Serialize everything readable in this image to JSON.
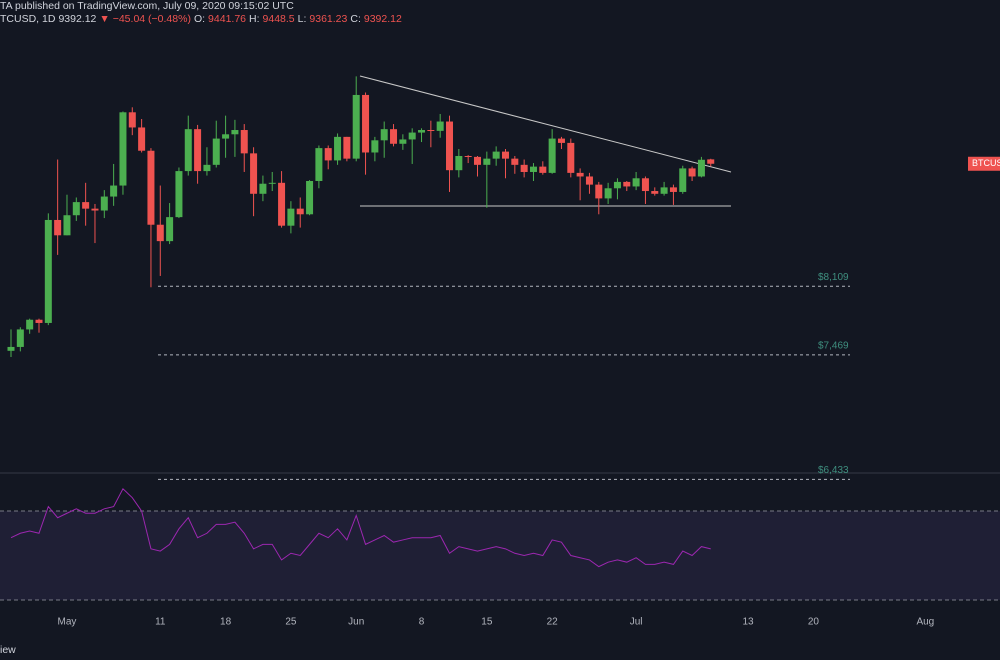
{
  "header": {
    "publisher": "TA published on TradingView.com, July 09, 2020 09:15:02 UTC",
    "symbol": "TCUSD, 1D",
    "last": 9392.12,
    "change": "▼ −45.04 (−0.48%)",
    "ohlc": [
      {
        "label": "O:",
        "value": 9441.76
      },
      {
        "label": "H:",
        "value": 9448.5
      },
      {
        "label": "L:",
        "value": 9361.23
      },
      {
        "label": "C:",
        "value": 9392.12
      }
    ]
  },
  "footer": "iew",
  "chart_data": [
    {
      "type": "candlestick",
      "log": true,
      "ylim": [
        6490,
        11430
      ],
      "up_color": "#4caf50",
      "down_color": "#ef5350",
      "price_tag": "BTCUS",
      "categories": [
        null,
        null,
        null,
        null,
        null,
        null,
        "May",
        null,
        null,
        null,
        null,
        null,
        null,
        null,
        null,
        null,
        "11",
        null,
        null,
        null,
        null,
        null,
        null,
        "18",
        null,
        null,
        null,
        null,
        null,
        null,
        "25",
        null,
        null,
        null,
        null,
        null,
        null,
        "Jun",
        null,
        null,
        null,
        null,
        null,
        null,
        "8",
        null,
        null,
        null,
        null,
        null,
        null,
        "15",
        null,
        null,
        null,
        null,
        null,
        null,
        "22",
        null,
        null,
        null,
        null,
        null,
        null,
        null,
        null,
        "Jul",
        null,
        null,
        null,
        null,
        null,
        null,
        null,
        null,
        null,
        null,
        null,
        "13",
        null,
        null,
        null,
        null,
        null,
        null,
        "20",
        null,
        null,
        null,
        null,
        null,
        null,
        null,
        null,
        null,
        null,
        null,
        "Aug"
      ],
      "open": [
        7505,
        7540,
        7700,
        7790,
        7760,
        8780,
        8620,
        8830,
        8970,
        8900,
        8880,
        9030,
        9150,
        9990,
        9810,
        9540,
        8730,
        8560,
        8810,
        9310,
        9790,
        9310,
        9380,
        9680,
        9730,
        9780,
        9510,
        9060,
        9170,
        9180,
        8720,
        8900,
        8840,
        9200,
        9570,
        9430,
        9700,
        9450,
        10200,
        9520,
        9660,
        9790,
        9620,
        9670,
        9750,
        9780,
        9770,
        9880,
        9320,
        9480,
        9470,
        9380,
        9450,
        9530,
        9450,
        9380,
        9300,
        9360,
        9290,
        9680,
        9630,
        9290,
        9250,
        9160,
        9010,
        9120,
        9190,
        9140,
        9230,
        9090,
        9060,
        9130,
        9080,
        9340,
        9250,
        9441.76,
        null,
        null,
        null,
        null,
        null,
        null,
        null,
        null,
        null,
        null,
        null,
        null,
        null,
        null,
        null,
        null,
        null,
        null,
        null,
        null,
        null,
        null,
        null
      ],
      "high": [
        7700,
        7720,
        7800,
        7800,
        8850,
        9440,
        9050,
        9020,
        9180,
        8950,
        9100,
        9390,
        10000,
        10050,
        9910,
        9570,
        9150,
        8960,
        9350,
        9950,
        9840,
        9580,
        9890,
        9950,
        9900,
        9850,
        9580,
        9260,
        9300,
        9310,
        8980,
        9020,
        9210,
        9600,
        9600,
        9740,
        9700,
        10430,
        10230,
        9700,
        9880,
        9850,
        9730,
        9800,
        9800,
        9890,
        9970,
        9950,
        9560,
        9490,
        9480,
        9530,
        9590,
        9560,
        9480,
        9440,
        9400,
        9420,
        9790,
        9700,
        9680,
        9340,
        9290,
        9190,
        9180,
        9230,
        9200,
        9300,
        9250,
        9130,
        9190,
        9160,
        9370,
        9360,
        9470,
        9448.5,
        null,
        null,
        null,
        null,
        null,
        null,
        null,
        null,
        null,
        null,
        null,
        null,
        null,
        null,
        null,
        null,
        null,
        null,
        null,
        null,
        null,
        null,
        null
      ],
      "low": [
        7450,
        7500,
        7660,
        7670,
        7740,
        8420,
        8620,
        8770,
        8720,
        8540,
        8800,
        8930,
        9050,
        9720,
        9520,
        8100,
        8210,
        8530,
        8800,
        9260,
        9170,
        9260,
        9350,
        9460,
        9470,
        9300,
        8820,
        8980,
        9090,
        8700,
        8640,
        8700,
        8830,
        9120,
        9330,
        9380,
        9420,
        9420,
        9270,
        9420,
        9460,
        9590,
        9550,
        9390,
        9640,
        9580,
        9690,
        9080,
        9240,
        9400,
        9250,
        8910,
        9370,
        9230,
        9280,
        9240,
        9200,
        9270,
        9280,
        9560,
        9240,
        8990,
        9060,
        8840,
        8950,
        9000,
        9090,
        9100,
        8950,
        9040,
        9040,
        8940,
        9060,
        9200,
        9240,
        9361.23,
        null,
        null,
        null,
        null,
        null,
        null,
        null,
        null,
        null,
        null,
        null,
        null,
        null,
        null,
        null,
        null,
        null,
        null,
        null,
        null,
        null,
        null,
        null
      ],
      "close": [
        7540,
        7700,
        7790,
        7760,
        8780,
        8620,
        8830,
        8970,
        8900,
        8880,
        9030,
        9150,
        9990,
        9810,
        9540,
        8730,
        8560,
        8810,
        9310,
        9790,
        9310,
        9380,
        9680,
        9730,
        9780,
        9510,
        9060,
        9170,
        9180,
        8720,
        8900,
        8840,
        9200,
        9570,
        9430,
        9700,
        9450,
        10200,
        9520,
        9660,
        9790,
        9620,
        9670,
        9750,
        9780,
        9770,
        9880,
        9320,
        9480,
        9470,
        9380,
        9450,
        9530,
        9450,
        9380,
        9300,
        9360,
        9290,
        9680,
        9630,
        9290,
        9250,
        9160,
        9010,
        9120,
        9190,
        9140,
        9230,
        9090,
        9060,
        9130,
        9080,
        9340,
        9250,
        9437.16,
        9392.12,
        null,
        null,
        null,
        null,
        null,
        null,
        null,
        null,
        null,
        null,
        null,
        null,
        null,
        null,
        null,
        null,
        null,
        null,
        null,
        null,
        null,
        null,
        null
      ],
      "levels": [
        {
          "value": 8109,
          "label": "$8,109"
        },
        {
          "value": 7469,
          "label": "$7,469"
        },
        {
          "value": 6433,
          "label": "$6,433"
        }
      ]
    },
    {
      "type": "line",
      "color": "#9c27b0",
      "ylim": [
        16.5,
        86.2
      ],
      "band": [
        30,
        70
      ],
      "values": [
        58,
        60,
        61,
        60,
        72,
        67,
        69,
        71,
        69,
        69,
        71,
        72,
        80,
        76,
        70,
        53,
        52,
        55,
        62,
        67,
        58,
        60,
        64,
        64,
        65,
        60,
        53,
        55,
        55,
        48,
        51,
        50,
        55,
        60,
        58,
        62,
        57,
        68,
        55,
        57,
        59,
        56,
        57,
        58,
        58,
        58,
        59,
        51,
        54,
        53,
        52,
        53,
        54,
        53,
        51,
        50,
        51,
        50,
        57,
        56,
        50,
        49,
        48,
        45,
        47,
        48,
        47,
        49,
        46,
        46,
        47,
        46,
        52,
        50,
        54,
        53,
        null,
        null,
        null,
        null,
        null,
        null,
        null,
        null,
        null,
        null,
        null,
        null,
        null,
        null,
        null,
        null,
        null,
        null,
        null,
        null,
        null,
        null,
        null
      ]
    }
  ]
}
